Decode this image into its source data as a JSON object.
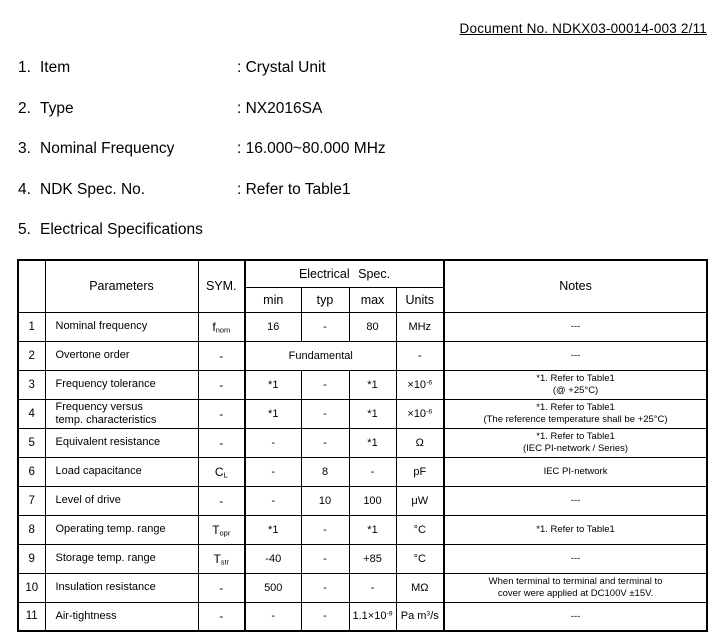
{
  "header": {
    "doc_no": "Document No. NDKX03-00014-003 2/11"
  },
  "items": [
    {
      "number": "1.",
      "label": "Item",
      "value": ": Crystal Unit"
    },
    {
      "number": "2.",
      "label": "Type",
      "value": ": NX2016SA"
    },
    {
      "number": "3.",
      "label": "Nominal Frequency",
      "value": ": 16.000~80.000 MHz"
    },
    {
      "number": "4.",
      "label": "NDK Spec. No.",
      "value": ": Refer to Table1"
    },
    {
      "number": "5.",
      "label": "Electrical Specifications",
      "value": ""
    }
  ],
  "table": {
    "headers": {
      "parameters": "Parameters",
      "sym": "SYM.",
      "elec_spec": "Electrical Spec.",
      "min": "min",
      "typ": "typ",
      "max": "max",
      "units": "Units",
      "notes": "Notes"
    },
    "rows": [
      {
        "num": "1",
        "param": "Nominal frequency",
        "sym": "f_{nom}",
        "min": "16",
        "typ": "-",
        "max": "80",
        "units": "MHz",
        "notes": "---"
      },
      {
        "num": "2",
        "param": "Overtone order",
        "sym": "-",
        "span": "Fundamental",
        "units": "-",
        "notes": "---"
      },
      {
        "num": "3",
        "param": "Frequency tolerance",
        "sym": "-",
        "min": "*1",
        "typ": "-",
        "max": "*1",
        "units": "×10^{-6}",
        "notes": "*1. Refer to Table1\n(@ +25°C)"
      },
      {
        "num": "4",
        "param": "Frequency versus\ntemp. characteristics",
        "sym": "-",
        "min": "*1",
        "typ": "-",
        "max": "*1",
        "units": "×10^{-6}",
        "notes": "*1. Refer to Table1\n(The reference temperature shall be +25°C)"
      },
      {
        "num": "5",
        "param": "Equivalent resistance",
        "sym": "-",
        "min": "-",
        "typ": "-",
        "max": "*1",
        "units": "Ω",
        "notes": "*1. Refer to Table1\n(IEC PI-network / Series)"
      },
      {
        "num": "6",
        "param": "Load capacitance",
        "sym": "C_{L}",
        "min": "-",
        "typ": "8",
        "max": "-",
        "units": "pF",
        "notes": "IEC PI-network"
      },
      {
        "num": "7",
        "param": "Level of drive",
        "sym": "-",
        "min": "-",
        "typ": "10",
        "max": "100",
        "units": "μW",
        "notes": "---"
      },
      {
        "num": "8",
        "param": "Operating temp. range",
        "sym": "T_{opr}",
        "min": "*1",
        "typ": "-",
        "max": "*1",
        "units": "°C",
        "notes": "*1. Refer to Table1"
      },
      {
        "num": "9",
        "param": "Storage temp. range",
        "sym": "T_{str}",
        "min": "-40",
        "typ": "-",
        "max": "+85",
        "units": "°C",
        "notes": "---"
      },
      {
        "num": "10",
        "param": "Insulation resistance",
        "sym": "-",
        "min": "500",
        "typ": "-",
        "max": "-",
        "units": "MΩ",
        "notes": "When terminal to terminal and terminal to\ncover were applied at DC100V ±15V."
      },
      {
        "num": "11",
        "param": "Air-tightness",
        "sym": "-",
        "min": "-",
        "typ": "-",
        "max": "1.1×10^{-9}",
        "units": "Pa m^{3}/s",
        "notes": "---"
      }
    ]
  }
}
